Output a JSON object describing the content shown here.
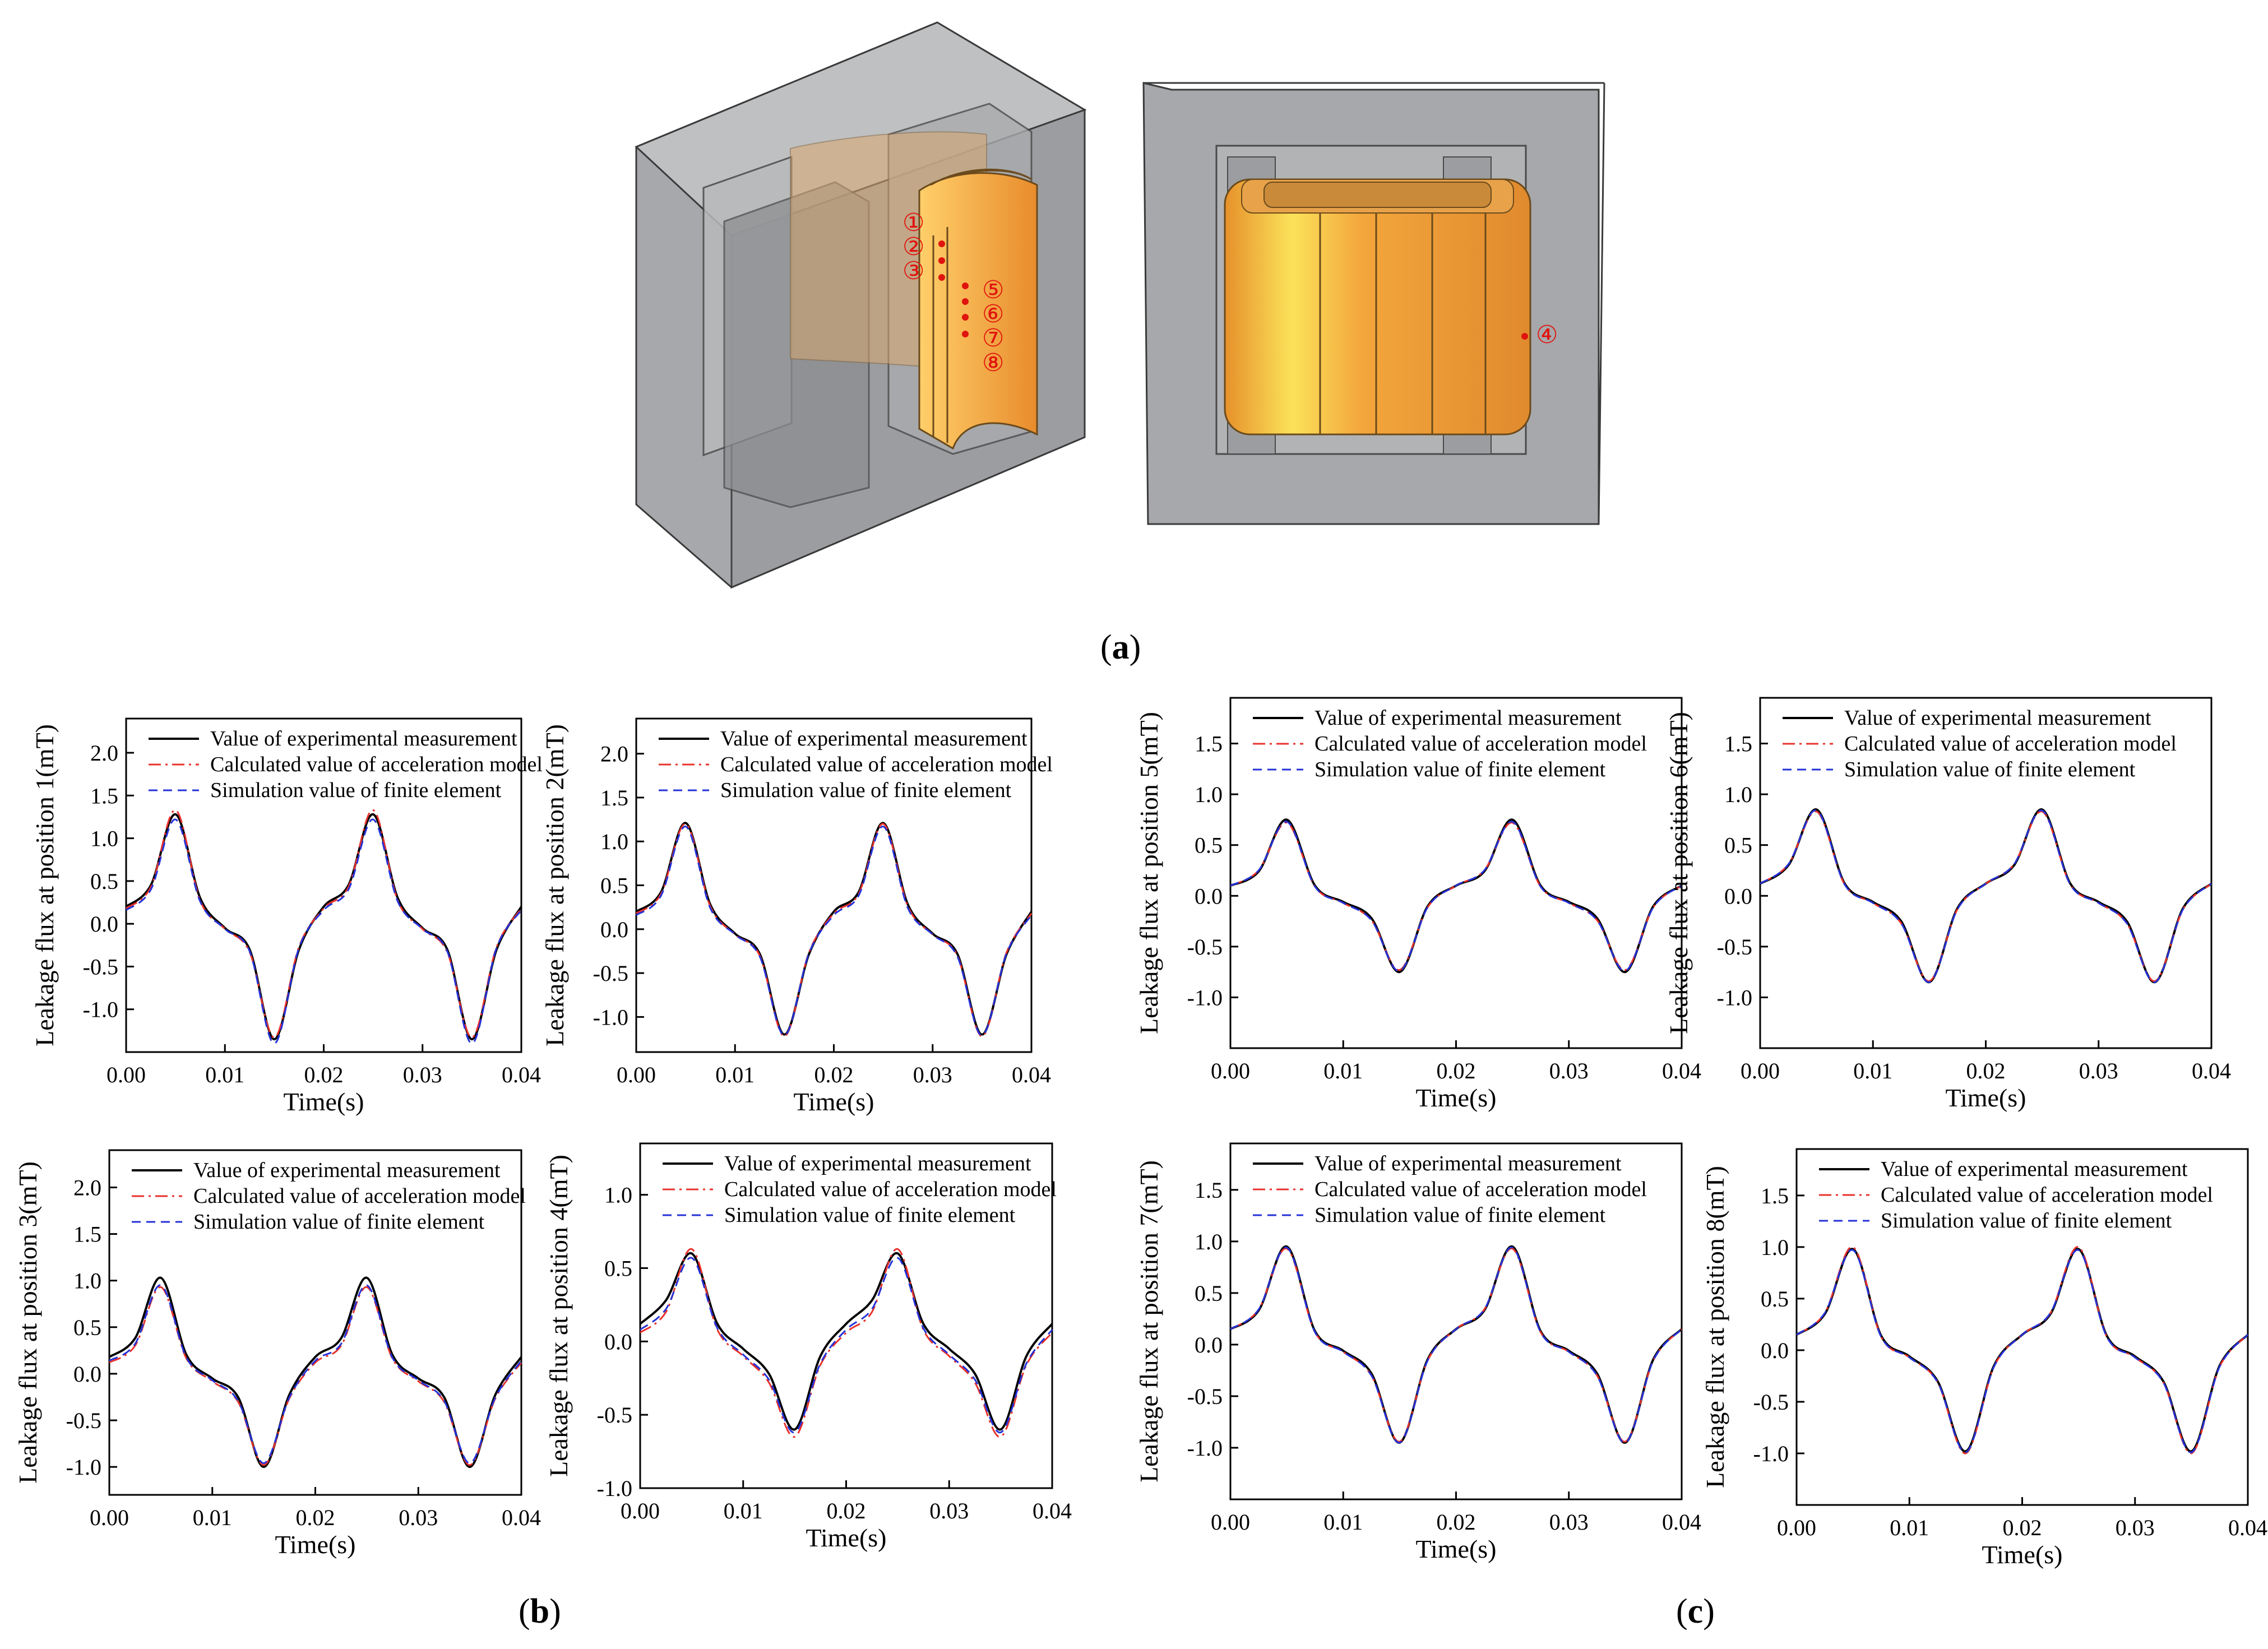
{
  "figure_a": {
    "label_open": "(",
    "label_letter": "a",
    "label_close": ")",
    "markers": [
      "①",
      "②",
      "③",
      "④",
      "⑤",
      "⑥",
      "⑦",
      "⑧"
    ],
    "colors": {
      "core": "#a4a6aa",
      "coil": "#f2a33a",
      "marker": "#e0140e"
    }
  },
  "panels": {
    "b": {
      "open": "(",
      "letter": "b",
      "close": ")"
    },
    "c": {
      "open": "(",
      "letter": "c",
      "close": ")"
    }
  },
  "legend": {
    "experimental": "Value of experimental measurement",
    "model": "Calculated value of acceleration model",
    "fem": "Simulation value of finite element"
  },
  "colors": {
    "experimental": "#000000",
    "model": "#e8312c",
    "fem": "#2432d8"
  },
  "chart_data": [
    {
      "type": "line",
      "ylabel": "Leakage flux at position 1(mT)",
      "xlabel": "Time(s)",
      "xlim": [
        0,
        0.04
      ],
      "ylim": [
        -1.5,
        2.4
      ],
      "xticks": [
        "0.00",
        "0.01",
        "0.02",
        "0.03",
        "0.04"
      ],
      "yticks": [
        "-1.0",
        "-0.5",
        "0.0",
        "0.5",
        "1.0",
        "1.5",
        "2.0"
      ],
      "x": [
        0,
        0.0025,
        0.005,
        0.0075,
        0.01,
        0.0125,
        0.015,
        0.0175,
        0.02,
        0.0225,
        0.025,
        0.0275,
        0.03,
        0.0325,
        0.035,
        0.0375,
        0.04
      ],
      "series": [
        {
          "name": "Value of experimental measurement",
          "values": [
            0.2,
            0.45,
            1.28,
            0.3,
            -0.05,
            -0.3,
            -1.35,
            -0.3,
            0.2,
            0.45,
            1.28,
            0.3,
            -0.05,
            -0.3,
            -1.35,
            -0.3,
            0.2
          ]
        },
        {
          "name": "Calculated value of acceleration model",
          "values": [
            0.18,
            0.43,
            1.33,
            0.27,
            -0.06,
            -0.33,
            -1.33,
            -0.27,
            0.18,
            0.43,
            1.33,
            0.27,
            -0.06,
            -0.33,
            -1.33,
            -0.27,
            0.18
          ]
        },
        {
          "name": "Simulation value of finite element",
          "values": [
            0.16,
            0.4,
            1.22,
            0.26,
            -0.06,
            -0.32,
            -1.4,
            -0.28,
            0.16,
            0.4,
            1.22,
            0.26,
            -0.06,
            -0.32,
            -1.4,
            -0.28,
            0.16
          ]
        }
      ]
    },
    {
      "type": "line",
      "ylabel": "Leakage flux at position 2(mT)",
      "xlabel": "Time(s)",
      "xlim": [
        0,
        0.04
      ],
      "ylim": [
        -1.4,
        2.4
      ],
      "xticks": [
        "0.00",
        "0.01",
        "0.02",
        "0.03",
        "0.04"
      ],
      "yticks": [
        "-1.0",
        "-0.5",
        "0.0",
        "0.5",
        "1.0",
        "1.5",
        "2.0"
      ],
      "x": [
        0,
        0.0025,
        0.005,
        0.0075,
        0.01,
        0.0125,
        0.015,
        0.0175,
        0.02,
        0.0225,
        0.025,
        0.0275,
        0.03,
        0.0325,
        0.035,
        0.0375,
        0.04
      ],
      "series": [
        {
          "name": "Value of experimental measurement",
          "values": [
            0.2,
            0.42,
            1.21,
            0.28,
            -0.05,
            -0.28,
            -1.2,
            -0.28,
            0.2,
            0.42,
            1.21,
            0.28,
            -0.05,
            -0.28,
            -1.2,
            -0.28,
            0.2
          ]
        },
        {
          "name": "Calculated value of acceleration model",
          "values": [
            0.18,
            0.4,
            1.2,
            0.26,
            -0.06,
            -0.3,
            -1.22,
            -0.26,
            0.18,
            0.4,
            1.2,
            0.26,
            -0.06,
            -0.3,
            -1.22,
            -0.26,
            0.18
          ]
        },
        {
          "name": "Simulation value of finite element",
          "values": [
            0.16,
            0.38,
            1.17,
            0.24,
            -0.06,
            -0.31,
            -1.21,
            -0.27,
            0.16,
            0.38,
            1.17,
            0.24,
            -0.06,
            -0.31,
            -1.21,
            -0.27,
            0.16
          ]
        }
      ]
    },
    {
      "type": "line",
      "ylabel": "Leakage flux at position 3(mT)",
      "xlabel": "Time(s)",
      "xlim": [
        0,
        0.04
      ],
      "ylim": [
        -1.3,
        2.4
      ],
      "xticks": [
        "0.00",
        "0.01",
        "0.02",
        "0.03",
        "0.04"
      ],
      "yticks": [
        "-1.0",
        "-0.5",
        "0.0",
        "0.5",
        "1.0",
        "1.5",
        "2.0"
      ],
      "x": [
        0,
        0.0025,
        0.005,
        0.0075,
        0.01,
        0.0125,
        0.015,
        0.0175,
        0.02,
        0.0225,
        0.025,
        0.0275,
        0.03,
        0.0325,
        0.035,
        0.0375,
        0.04
      ],
      "series": [
        {
          "name": "Value of experimental measurement",
          "values": [
            0.18,
            0.38,
            1.03,
            0.2,
            -0.05,
            -0.25,
            -1.0,
            -0.22,
            0.18,
            0.38,
            1.03,
            0.2,
            -0.05,
            -0.25,
            -1.0,
            -0.22,
            0.18
          ]
        },
        {
          "name": "Calculated value of acceleration model",
          "values": [
            0.12,
            0.3,
            0.93,
            0.16,
            -0.08,
            -0.3,
            -0.98,
            -0.26,
            0.12,
            0.3,
            0.93,
            0.16,
            -0.08,
            -0.3,
            -0.98,
            -0.26,
            0.12
          ]
        },
        {
          "name": "Simulation value of finite element",
          "values": [
            0.14,
            0.32,
            0.95,
            0.17,
            -0.07,
            -0.29,
            -0.96,
            -0.25,
            0.14,
            0.32,
            0.95,
            0.17,
            -0.07,
            -0.29,
            -0.96,
            -0.25,
            0.14
          ]
        }
      ]
    },
    {
      "type": "line",
      "ylabel": "Leakage flux at position 4(mT)",
      "xlabel": "Time(s)",
      "xlim": [
        0,
        0.04
      ],
      "ylim": [
        -1.0,
        1.35
      ],
      "xticks": [
        "0.00",
        "0.01",
        "0.02",
        "0.03",
        "0.04"
      ],
      "yticks": [
        "-1.0",
        "-0.5",
        "0.0",
        "0.5",
        "1.0"
      ],
      "x": [
        0,
        0.0025,
        0.005,
        0.0075,
        0.01,
        0.0125,
        0.015,
        0.0175,
        0.02,
        0.0225,
        0.025,
        0.0275,
        0.03,
        0.0325,
        0.035,
        0.0375,
        0.04
      ],
      "series": [
        {
          "name": "Value of experimental measurement",
          "values": [
            0.12,
            0.28,
            0.6,
            0.12,
            -0.05,
            -0.22,
            -0.6,
            -0.1,
            0.12,
            0.28,
            0.6,
            0.12,
            -0.05,
            -0.22,
            -0.6,
            -0.1,
            0.12
          ]
        },
        {
          "name": "Calculated value of acceleration model",
          "values": [
            0.06,
            0.2,
            0.63,
            0.08,
            -0.1,
            -0.28,
            -0.65,
            -0.16,
            0.06,
            0.2,
            0.63,
            0.08,
            -0.1,
            -0.28,
            -0.65,
            -0.16,
            0.06
          ]
        },
        {
          "name": "Simulation value of finite element",
          "values": [
            0.08,
            0.22,
            0.57,
            0.09,
            -0.09,
            -0.26,
            -0.62,
            -0.15,
            0.08,
            0.22,
            0.57,
            0.09,
            -0.09,
            -0.26,
            -0.62,
            -0.15,
            0.08
          ]
        }
      ]
    },
    {
      "type": "line",
      "ylabel": "Leakage flux at position 5(mT)",
      "xlabel": "Time(s)",
      "xlim": [
        0,
        0.04
      ],
      "ylim": [
        -1.5,
        1.95
      ],
      "xticks": [
        "0.00",
        "0.01",
        "0.02",
        "0.03",
        "0.04"
      ],
      "yticks": [
        "-1.0",
        "-0.5",
        "0.0",
        "0.5",
        "1.0",
        "1.5"
      ],
      "x": [
        0,
        0.0025,
        0.005,
        0.0075,
        0.01,
        0.0125,
        0.015,
        0.0175,
        0.02,
        0.0225,
        0.025,
        0.0275,
        0.03,
        0.0325,
        0.035,
        0.0375,
        0.04
      ],
      "series": [
        {
          "name": "Value of experimental measurement",
          "values": [
            0.1,
            0.24,
            0.75,
            0.1,
            -0.06,
            -0.22,
            -0.75,
            -0.1,
            0.1,
            0.24,
            0.75,
            0.1,
            -0.06,
            -0.22,
            -0.75,
            -0.1,
            0.1
          ]
        },
        {
          "name": "Calculated value of acceleration model",
          "values": [
            0.1,
            0.25,
            0.72,
            0.09,
            -0.07,
            -0.24,
            -0.73,
            -0.11,
            0.1,
            0.25,
            0.72,
            0.09,
            -0.07,
            -0.24,
            -0.73,
            -0.11,
            0.1
          ]
        },
        {
          "name": "Simulation value of finite element",
          "values": [
            0.1,
            0.25,
            0.73,
            0.09,
            -0.07,
            -0.24,
            -0.74,
            -0.11,
            0.1,
            0.25,
            0.73,
            0.09,
            -0.07,
            -0.24,
            -0.74,
            -0.11,
            0.1
          ]
        }
      ]
    },
    {
      "type": "line",
      "ylabel": "Leakage flux at position 6(mT)",
      "xlabel": "Time(s)",
      "xlim": [
        0,
        0.04
      ],
      "ylim": [
        -1.5,
        1.95
      ],
      "xticks": [
        "0.00",
        "0.01",
        "0.02",
        "0.03",
        "0.04"
      ],
      "yticks": [
        "-1.0",
        "-0.5",
        "0.0",
        "0.5",
        "1.0",
        "1.5"
      ],
      "x": [
        0,
        0.0025,
        0.005,
        0.0075,
        0.01,
        0.0125,
        0.015,
        0.0175,
        0.02,
        0.0225,
        0.025,
        0.0275,
        0.03,
        0.0325,
        0.035,
        0.0375,
        0.04
      ],
      "series": [
        {
          "name": "Value of experimental measurement",
          "values": [
            0.12,
            0.3,
            0.85,
            0.12,
            -0.06,
            -0.25,
            -0.85,
            -0.12,
            0.12,
            0.3,
            0.85,
            0.12,
            -0.06,
            -0.25,
            -0.85,
            -0.12,
            0.12
          ]
        },
        {
          "name": "Calculated value of acceleration model",
          "values": [
            0.12,
            0.31,
            0.83,
            0.11,
            -0.07,
            -0.27,
            -0.84,
            -0.13,
            0.12,
            0.31,
            0.83,
            0.11,
            -0.07,
            -0.27,
            -0.84,
            -0.13,
            0.12
          ]
        },
        {
          "name": "Simulation value of finite element",
          "values": [
            0.12,
            0.31,
            0.84,
            0.11,
            -0.07,
            -0.27,
            -0.85,
            -0.13,
            0.12,
            0.31,
            0.84,
            0.11,
            -0.07,
            -0.27,
            -0.85,
            -0.13,
            0.12
          ]
        }
      ]
    },
    {
      "type": "line",
      "ylabel": "Leakage flux at position 7(mT)",
      "xlabel": "Time(s)",
      "xlim": [
        0,
        0.04
      ],
      "ylim": [
        -1.5,
        1.95
      ],
      "xticks": [
        "0.00",
        "0.01",
        "0.02",
        "0.03",
        "0.04"
      ],
      "yticks": [
        "-1.0",
        "-0.5",
        "0.0",
        "0.5",
        "1.0",
        "1.5"
      ],
      "x": [
        0,
        0.0025,
        0.005,
        0.0075,
        0.01,
        0.0125,
        0.015,
        0.0175,
        0.02,
        0.0225,
        0.025,
        0.0275,
        0.03,
        0.0325,
        0.035,
        0.0375,
        0.04
      ],
      "series": [
        {
          "name": "Value of experimental measurement",
          "values": [
            0.15,
            0.33,
            0.95,
            0.13,
            -0.06,
            -0.28,
            -0.95,
            -0.14,
            0.15,
            0.33,
            0.95,
            0.13,
            -0.06,
            -0.28,
            -0.95,
            -0.14,
            0.15
          ]
        },
        {
          "name": "Calculated value of acceleration model",
          "values": [
            0.15,
            0.34,
            0.93,
            0.12,
            -0.07,
            -0.3,
            -0.94,
            -0.15,
            0.15,
            0.34,
            0.93,
            0.12,
            -0.07,
            -0.3,
            -0.94,
            -0.15,
            0.15
          ]
        },
        {
          "name": "Simulation value of finite element",
          "values": [
            0.15,
            0.34,
            0.94,
            0.12,
            -0.07,
            -0.3,
            -0.95,
            -0.15,
            0.15,
            0.34,
            0.94,
            0.12,
            -0.07,
            -0.3,
            -0.95,
            -0.15,
            0.15
          ]
        }
      ]
    },
    {
      "type": "line",
      "ylabel": "Leakage flux at position 8(mT)",
      "xlabel": "Time(s)",
      "xlim": [
        0,
        0.04
      ],
      "ylim": [
        -1.5,
        1.95
      ],
      "xticks": [
        "0.00",
        "0.01",
        "0.02",
        "0.03",
        "0.04"
      ],
      "yticks": [
        "-1.0",
        "-0.5",
        "0.0",
        "0.5",
        "1.0",
        "1.5"
      ],
      "x": [
        0,
        0.0025,
        0.005,
        0.0075,
        0.01,
        0.0125,
        0.015,
        0.0175,
        0.02,
        0.0225,
        0.025,
        0.0275,
        0.03,
        0.0325,
        0.035,
        0.0375,
        0.04
      ],
      "series": [
        {
          "name": "Value of experimental measurement",
          "values": [
            0.15,
            0.35,
            0.98,
            0.14,
            -0.06,
            -0.3,
            -0.98,
            -0.15,
            0.15,
            0.35,
            0.98,
            0.14,
            -0.06,
            -0.3,
            -0.98,
            -0.15,
            0.15
          ]
        },
        {
          "name": "Calculated value of acceleration model",
          "values": [
            0.15,
            0.36,
            1.0,
            0.13,
            -0.07,
            -0.31,
            -1.0,
            -0.16,
            0.15,
            0.36,
            1.0,
            0.13,
            -0.07,
            -0.31,
            -1.0,
            -0.16,
            0.15
          ]
        },
        {
          "name": "Simulation value of finite element",
          "values": [
            0.15,
            0.36,
            0.97,
            0.13,
            -0.07,
            -0.31,
            -0.99,
            -0.16,
            0.15,
            0.36,
            0.97,
            0.13,
            -0.07,
            -0.31,
            -0.99,
            -0.16,
            0.15
          ]
        }
      ]
    }
  ]
}
